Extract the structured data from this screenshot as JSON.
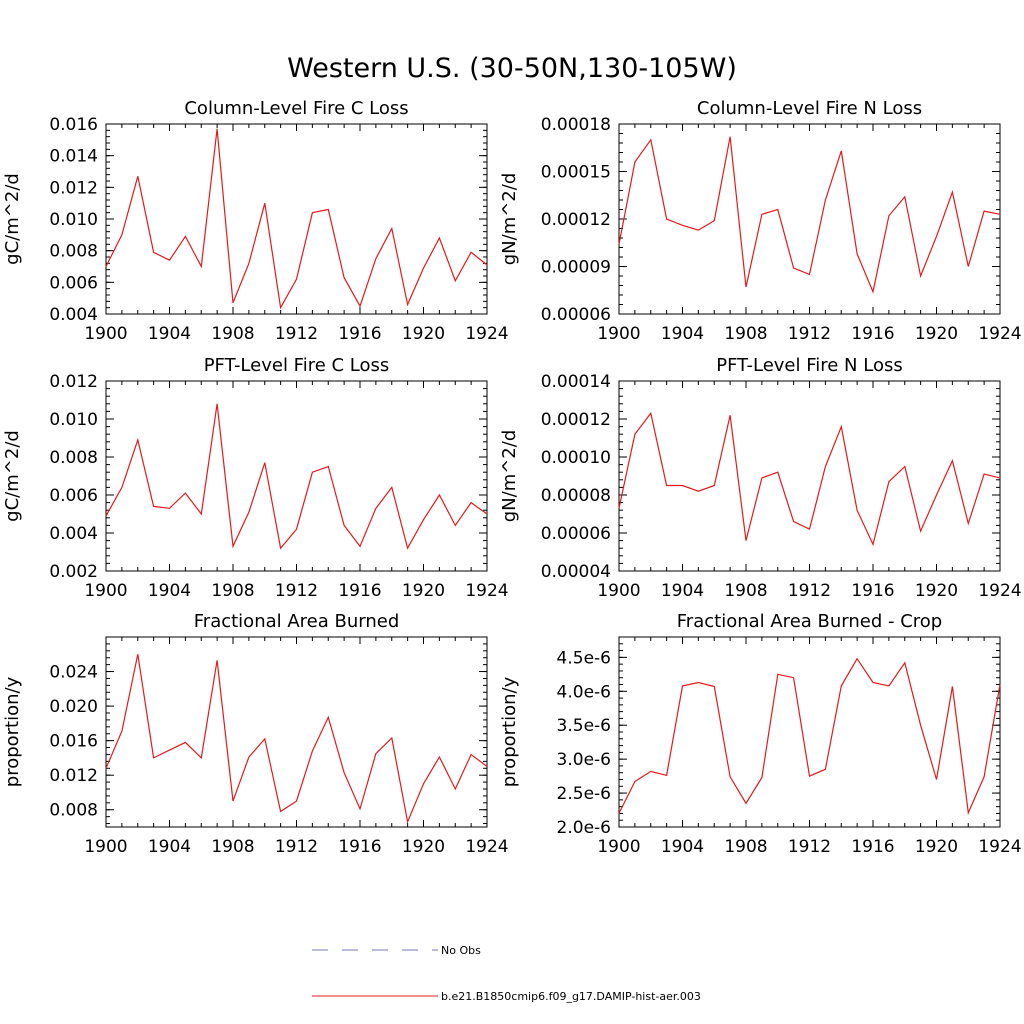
{
  "title": "Western U.S. (30-50N,130-105W)",
  "colors": {
    "series": "#e31a1c",
    "obs": "#7777bb",
    "axis": "#000000"
  },
  "legend": {
    "placement": "bottom-center",
    "entries": [
      {
        "label": "No Obs",
        "style": "dashed",
        "color": "#7777bb"
      },
      {
        "label": "b.e21.B1850cmip6.f09_g17.DAMIP-hist-aer.003",
        "style": "solid",
        "color": "#e31a1c"
      }
    ]
  },
  "chart_data": [
    {
      "type": "line",
      "title": "Column-Level Fire C Loss",
      "ylabel": "gC/m^2/d",
      "xlim": [
        1900,
        1924
      ],
      "ylim": [
        0.004,
        0.016
      ],
      "xticks": [
        "1900",
        "1904",
        "1908",
        "1912",
        "1916",
        "1920",
        "1924"
      ],
      "yticks": [
        "0.004",
        "0.006",
        "0.008",
        "0.010",
        "0.012",
        "0.014",
        "0.016"
      ],
      "x": [
        1900,
        1901,
        1902,
        1903,
        1904,
        1905,
        1906,
        1907,
        1908,
        1909,
        1910,
        1911,
        1912,
        1913,
        1914,
        1915,
        1916,
        1917,
        1918,
        1919,
        1920,
        1921,
        1922,
        1923,
        1924
      ],
      "series": [
        {
          "name": "b.e21.B1850cmip6.f09_g17.DAMIP-hist-aer.003",
          "values": [
            0.007,
            0.009,
            0.0127,
            0.0079,
            0.0074,
            0.0089,
            0.007,
            0.0157,
            0.0047,
            0.0072,
            0.011,
            0.0044,
            0.0062,
            0.0104,
            0.0106,
            0.0063,
            0.0045,
            0.0075,
            0.0094,
            0.0046,
            0.0069,
            0.0088,
            0.0061,
            0.0079,
            0.0071
          ]
        }
      ]
    },
    {
      "type": "line",
      "title": "Column-Level Fire N Loss",
      "ylabel": "gN/m^2/d",
      "xlim": [
        1900,
        1924
      ],
      "ylim": [
        6e-05,
        0.00018
      ],
      "xticks": [
        "1900",
        "1904",
        "1908",
        "1912",
        "1916",
        "1920",
        "1924"
      ],
      "yticks": [
        "0.00006",
        "0.00009",
        "0.00012",
        "0.00015",
        "0.00018"
      ],
      "x": [
        1900,
        1901,
        1902,
        1903,
        1904,
        1905,
        1906,
        1907,
        1908,
        1909,
        1910,
        1911,
        1912,
        1913,
        1914,
        1915,
        1916,
        1917,
        1918,
        1919,
        1920,
        1921,
        1922,
        1923,
        1924
      ],
      "series": [
        {
          "name": "b.e21.B1850cmip6.f09_g17.DAMIP-hist-aer.003",
          "values": [
            0.000104,
            0.000156,
            0.00017,
            0.00012,
            0.000116,
            0.000113,
            0.000119,
            0.000172,
            7.7e-05,
            0.000123,
            0.000126,
            8.9e-05,
            8.5e-05,
            0.000132,
            0.000163,
            9.8e-05,
            7.4e-05,
            0.000122,
            0.000134,
            8.4e-05,
            0.000109,
            0.000137,
            9e-05,
            0.000125,
            0.000123
          ]
        }
      ]
    },
    {
      "type": "line",
      "title": "PFT-Level Fire C Loss",
      "ylabel": "gC/m^2/d",
      "xlim": [
        1900,
        1924
      ],
      "ylim": [
        0.002,
        0.012
      ],
      "xticks": [
        "1900",
        "1904",
        "1908",
        "1912",
        "1916",
        "1920",
        "1924"
      ],
      "yticks": [
        "0.002",
        "0.004",
        "0.006",
        "0.008",
        "0.010",
        "0.012"
      ],
      "x": [
        1900,
        1901,
        1902,
        1903,
        1904,
        1905,
        1906,
        1907,
        1908,
        1909,
        1910,
        1911,
        1912,
        1913,
        1914,
        1915,
        1916,
        1917,
        1918,
        1919,
        1920,
        1921,
        1922,
        1923,
        1924
      ],
      "series": [
        {
          "name": "b.e21.B1850cmip6.f09_g17.DAMIP-hist-aer.003",
          "values": [
            0.0049,
            0.0064,
            0.0089,
            0.0054,
            0.0053,
            0.0061,
            0.005,
            0.0108,
            0.0033,
            0.0051,
            0.0077,
            0.0032,
            0.0042,
            0.0072,
            0.0075,
            0.0044,
            0.0033,
            0.0053,
            0.0064,
            0.0032,
            0.0047,
            0.006,
            0.0044,
            0.0056,
            0.005
          ]
        }
      ]
    },
    {
      "type": "line",
      "title": "PFT-Level Fire N Loss",
      "ylabel": "gN/m^2/d",
      "xlim": [
        1900,
        1924
      ],
      "ylim": [
        4e-05,
        0.00014
      ],
      "xticks": [
        "1900",
        "1904",
        "1908",
        "1912",
        "1916",
        "1920",
        "1924"
      ],
      "yticks": [
        "0.00004",
        "0.00006",
        "0.00008",
        "0.00010",
        "0.00012",
        "0.00014"
      ],
      "x": [
        1900,
        1901,
        1902,
        1903,
        1904,
        1905,
        1906,
        1907,
        1908,
        1909,
        1910,
        1911,
        1912,
        1913,
        1914,
        1915,
        1916,
        1917,
        1918,
        1919,
        1920,
        1921,
        1922,
        1923,
        1924
      ],
      "series": [
        {
          "name": "b.e21.B1850cmip6.f09_g17.DAMIP-hist-aer.003",
          "values": [
            7.3e-05,
            0.000112,
            0.000123,
            8.5e-05,
            8.5e-05,
            8.2e-05,
            8.5e-05,
            0.000122,
            5.6e-05,
            8.9e-05,
            9.2e-05,
            6.6e-05,
            6.2e-05,
            9.5e-05,
            0.000116,
            7.2e-05,
            5.4e-05,
            8.7e-05,
            9.5e-05,
            6.1e-05,
            8e-05,
            9.8e-05,
            6.5e-05,
            9.1e-05,
            8.9e-05
          ]
        }
      ]
    },
    {
      "type": "line",
      "title": "Fractional Area Burned",
      "ylabel": "proportion/y",
      "xlim": [
        1900,
        1924
      ],
      "ylim": [
        0.006,
        0.028
      ],
      "xticks": [
        "1900",
        "1904",
        "1908",
        "1912",
        "1916",
        "1920",
        "1924"
      ],
      "yticks": [
        "0.008",
        "0.012",
        "0.016",
        "0.020",
        "0.024"
      ],
      "ytickvalues": [
        0.008,
        0.012,
        0.016,
        0.02,
        0.024
      ],
      "x": [
        1900,
        1901,
        1902,
        1903,
        1904,
        1905,
        1906,
        1907,
        1908,
        1909,
        1910,
        1911,
        1912,
        1913,
        1914,
        1915,
        1916,
        1917,
        1918,
        1919,
        1920,
        1921,
        1922,
        1923,
        1924
      ],
      "series": [
        {
          "name": "b.e21.B1850cmip6.f09_g17.DAMIP-hist-aer.003",
          "values": [
            0.0128,
            0.0171,
            0.026,
            0.014,
            0.0149,
            0.0158,
            0.014,
            0.0253,
            0.009,
            0.0141,
            0.0162,
            0.0078,
            0.009,
            0.0148,
            0.0187,
            0.0123,
            0.0081,
            0.0145,
            0.0163,
            0.0066,
            0.011,
            0.0141,
            0.0104,
            0.0144,
            0.013
          ]
        }
      ]
    },
    {
      "type": "line",
      "title": "Fractional Area Burned - Crop",
      "ylabel": "proportion/y",
      "xlim": [
        1900,
        1924
      ],
      "ylim": [
        2e-06,
        4.8e-06
      ],
      "xticks": [
        "1900",
        "1904",
        "1908",
        "1912",
        "1916",
        "1920",
        "1924"
      ],
      "yticks": [
        "2.0e-6",
        "2.5e-6",
        "3.0e-6",
        "3.5e-6",
        "4.0e-6",
        "4.5e-6"
      ],
      "ytickvalues": [
        2e-06,
        2.5e-06,
        3e-06,
        3.5e-06,
        4e-06,
        4.5e-06
      ],
      "x": [
        1900,
        1901,
        1902,
        1903,
        1904,
        1905,
        1906,
        1907,
        1908,
        1909,
        1910,
        1911,
        1912,
        1913,
        1914,
        1915,
        1916,
        1917,
        1918,
        1919,
        1920,
        1921,
        1922,
        1923,
        1924
      ],
      "series": [
        {
          "name": "b.e21.B1850cmip6.f09_g17.DAMIP-hist-aer.003",
          "values": [
            2.2e-06,
            2.67e-06,
            2.82e-06,
            2.76e-06,
            4.08e-06,
            4.13e-06,
            4.07e-06,
            2.74e-06,
            2.35e-06,
            2.73e-06,
            4.25e-06,
            4.2e-06,
            2.75e-06,
            2.85e-06,
            4.08e-06,
            4.48e-06,
            4.13e-06,
            4.08e-06,
            4.42e-06,
            3.5e-06,
            2.7e-06,
            4.07e-06,
            2.21e-06,
            2.74e-06,
            4.1e-06
          ]
        }
      ]
    }
  ]
}
